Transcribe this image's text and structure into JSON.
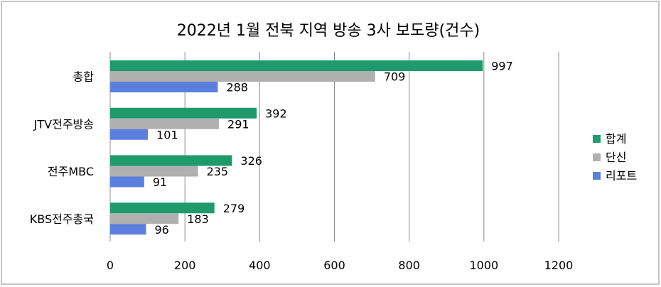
{
  "chart_data": {
    "type": "bar",
    "orientation": "horizontal",
    "title": "2022년 1월 전북 지역 방송 3사 보도량(건수)",
    "categories": [
      "총합",
      "JTV전주방송",
      "전주MBC",
      "KBS전주총국"
    ],
    "series": [
      {
        "name": "합계",
        "color": "#1f9a6c",
        "values": [
          997,
          392,
          326,
          279
        ]
      },
      {
        "name": "단신",
        "color": "#b0b0b0",
        "values": [
          709,
          291,
          235,
          183
        ]
      },
      {
        "name": "리포트",
        "color": "#5b7fdc",
        "values": [
          288,
          101,
          91,
          96
        ]
      }
    ],
    "xlim": [
      0,
      1200
    ],
    "xticks": [
      0,
      200,
      400,
      600,
      800,
      1000,
      1200
    ],
    "grid": true,
    "legend": "right"
  }
}
